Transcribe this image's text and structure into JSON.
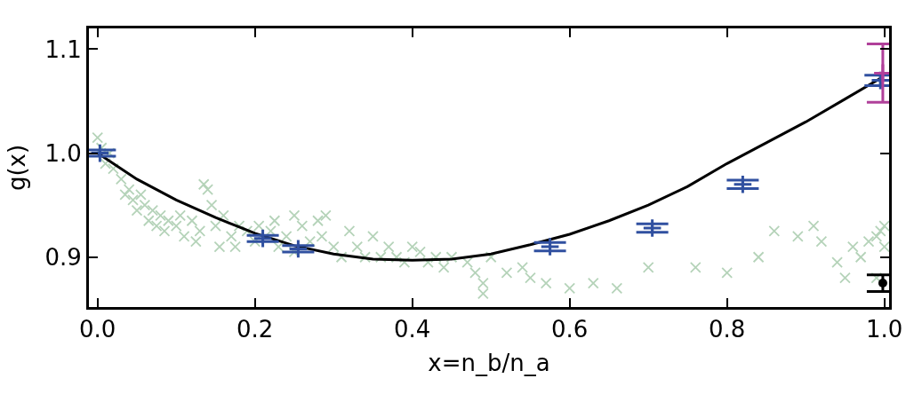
{
  "chart_data": {
    "type": "scatter",
    "xlabel": "x=n_b/n_a",
    "ylabel": "g(x)",
    "xlim": [
      -0.011,
      1.006
    ],
    "ylim": [
      0.852,
      1.12
    ],
    "xticks": [
      {
        "value": 0,
        "label": "0.0"
      },
      0.2,
      0.4,
      0.6,
      0.8,
      {
        "value": 1,
        "label": "1.0"
      }
    ],
    "yticks": [
      0.9,
      {
        "value": 1,
        "label": "1.0"
      },
      1.1
    ],
    "series": [
      {
        "type": "scatter",
        "marker": "cross",
        "color": "#b5d3b9",
        "x": [
          0.0,
          0.005,
          0.01,
          0.015,
          0.02,
          0.03,
          0.035,
          0.04,
          0.045,
          0.05,
          0.055,
          0.06,
          0.065,
          0.07,
          0.075,
          0.08,
          0.085,
          0.09,
          0.1,
          0.105,
          0.11,
          0.12,
          0.125,
          0.13,
          0.135,
          0.14,
          0.145,
          0.15,
          0.155,
          0.16,
          0.17,
          0.175,
          0.18,
          0.19,
          0.2,
          0.205,
          0.22,
          0.225,
          0.23,
          0.24,
          0.25,
          0.25,
          0.26,
          0.27,
          0.28,
          0.285,
          0.29,
          0.3,
          0.31,
          0.32,
          0.33,
          0.34,
          0.35,
          0.36,
          0.37,
          0.38,
          0.39,
          0.4,
          0.41,
          0.42,
          0.43,
          0.44,
          0.45,
          0.47,
          0.48,
          0.49,
          0.49,
          0.5,
          0.52,
          0.54,
          0.55,
          0.57,
          0.6,
          0.63,
          0.66,
          0.7,
          0.76,
          0.8,
          0.84,
          0.86,
          0.89,
          0.91,
          0.92,
          0.94,
          0.95,
          0.96,
          0.97,
          0.98,
          0.99,
          0.995,
          1.0,
          1.0,
          0.99
        ],
        "values": [
          1.015,
          1.005,
          0.99,
          1.0,
          0.985,
          0.975,
          0.96,
          0.965,
          0.955,
          0.945,
          0.96,
          0.95,
          0.935,
          0.945,
          0.93,
          0.94,
          0.925,
          0.935,
          0.93,
          0.94,
          0.92,
          0.935,
          0.915,
          0.925,
          0.97,
          0.965,
          0.95,
          0.93,
          0.91,
          0.94,
          0.92,
          0.91,
          0.93,
          0.925,
          0.915,
          0.93,
          0.925,
          0.935,
          0.91,
          0.92,
          0.905,
          0.94,
          0.93,
          0.915,
          0.935,
          0.92,
          0.94,
          0.91,
          0.9,
          0.925,
          0.91,
          0.9,
          0.92,
          0.9,
          0.91,
          0.9,
          0.895,
          0.91,
          0.905,
          0.895,
          0.9,
          0.89,
          0.9,
          0.895,
          0.885,
          0.875,
          0.865,
          0.9,
          0.885,
          0.89,
          0.88,
          0.875,
          0.87,
          0.875,
          0.87,
          0.89,
          0.89,
          0.885,
          0.9,
          0.925,
          0.92,
          0.93,
          0.915,
          0.895,
          0.88,
          0.91,
          0.9,
          0.915,
          0.92,
          0.925,
          0.91,
          0.93,
          0.88
        ]
      },
      {
        "type": "line",
        "marker": "none",
        "color": "#000000",
        "x": [
          0,
          0.05,
          0.1,
          0.15,
          0.2,
          0.25,
          0.3,
          0.35,
          0.4,
          0.45,
          0.5,
          0.55,
          0.6,
          0.65,
          0.7,
          0.75,
          0.8,
          0.85,
          0.9,
          0.95,
          0.995
        ],
        "values": [
          1.0,
          0.975,
          0.955,
          0.938,
          0.923,
          0.911,
          0.903,
          0.898,
          0.897,
          0.898,
          0.903,
          0.912,
          0.922,
          0.935,
          0.95,
          0.968,
          0.99,
          1.01,
          1.03,
          1.052,
          1.072
        ]
      },
      {
        "type": "scatter",
        "marker": "cross",
        "color": "#3050a0",
        "x": [
          0.003,
          0.21,
          0.255,
          0.575,
          0.705,
          0.82,
          0.995
        ],
        "values": [
          1.0,
          0.918,
          0.908,
          0.91,
          0.928,
          0.97,
          1.07
        ],
        "errors": [
          0.003,
          0.003,
          0.003,
          0.004,
          0.004,
          0.004,
          0.005
        ]
      },
      {
        "type": "scatter",
        "marker": "cross",
        "color": "#b0409a",
        "x": [
          0.998
        ],
        "values": [
          1.077
        ],
        "errors": [
          0.028
        ]
      },
      {
        "type": "scatter",
        "marker": "circle",
        "color": "#000000",
        "x": [
          0.998
        ],
        "values": [
          0.875
        ],
        "errors": [
          0.008
        ]
      }
    ]
  }
}
